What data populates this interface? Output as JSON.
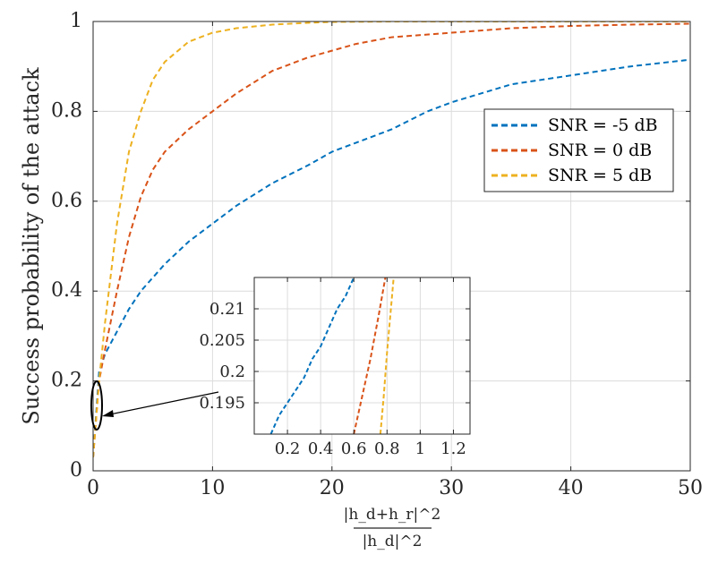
{
  "chart_data": [
    {
      "type": "line",
      "title": "",
      "ylabel": "Success probability of the attack",
      "xlabel": {
        "numerator": "|h_d+h_r|^2",
        "denominator": "|h_d|^2"
      },
      "xlim": [
        0,
        50
      ],
      "ylim": [
        0,
        1
      ],
      "xticks": [
        "0",
        "10",
        "20",
        "30",
        "40",
        "50"
      ],
      "yticks": [
        "0",
        "0.2",
        "0.4",
        "0.6",
        "0.8",
        "1"
      ],
      "grid": true,
      "legend_position": "right",
      "series": [
        {
          "name": "SNR = -5 dB",
          "color": "#0072BD",
          "x": [
            0,
            0.5,
            1,
            2,
            3,
            4,
            5,
            6,
            8,
            10,
            12,
            15,
            18,
            20,
            22,
            25,
            28,
            30,
            35,
            40,
            45,
            50
          ],
          "y": [
            0.03,
            0.22,
            0.26,
            0.31,
            0.36,
            0.4,
            0.43,
            0.46,
            0.51,
            0.55,
            0.59,
            0.64,
            0.68,
            0.71,
            0.73,
            0.76,
            0.8,
            0.82,
            0.86,
            0.88,
            0.9,
            0.915
          ]
        },
        {
          "name": "SNR = 0 dB",
          "color": "#D95319",
          "x": [
            0,
            0.5,
            1,
            2,
            3,
            4,
            5,
            6,
            8,
            10,
            12,
            15,
            18,
            20,
            22,
            25,
            30,
            35,
            40,
            45,
            50
          ],
          "y": [
            0.03,
            0.2,
            0.27,
            0.4,
            0.52,
            0.61,
            0.67,
            0.71,
            0.76,
            0.8,
            0.84,
            0.89,
            0.92,
            0.935,
            0.95,
            0.965,
            0.975,
            0.985,
            0.99,
            0.993,
            0.995
          ]
        },
        {
          "name": "SNR = 5 dB",
          "color": "#EDB120",
          "x": [
            0,
            0.5,
            1,
            2,
            3,
            4,
            5,
            6,
            8,
            10,
            12,
            15,
            18,
            20,
            25,
            30,
            40,
            50
          ],
          "y": [
            0.03,
            0.2,
            0.33,
            0.55,
            0.71,
            0.8,
            0.87,
            0.91,
            0.955,
            0.975,
            0.985,
            0.993,
            0.997,
            0.999,
            1.0,
            1.0,
            1.0,
            1.0
          ]
        }
      ]
    },
    {
      "type": "line",
      "title": "",
      "xlim": [
        0,
        1.3
      ],
      "ylim": [
        0.19,
        0.215
      ],
      "xticks": [
        "0.2",
        "0.4",
        "0.6",
        "0.8",
        "1",
        "1.2"
      ],
      "yticks": [
        "0.195",
        "0.2",
        "0.205",
        "0.21"
      ],
      "grid": true,
      "series": [
        {
          "name": "SNR = -5 dB",
          "color": "#0072BD",
          "x": [
            0.1,
            0.15,
            0.2,
            0.25,
            0.3,
            0.35,
            0.4,
            0.45,
            0.5,
            0.55,
            0.6
          ],
          "y": [
            0.19,
            0.193,
            0.195,
            0.197,
            0.199,
            0.202,
            0.204,
            0.207,
            0.21,
            0.212,
            0.215
          ]
        },
        {
          "name": "SNR = 0 dB",
          "color": "#D95319",
          "x": [
            0.6,
            0.65,
            0.7,
            0.75,
            0.79
          ],
          "y": [
            0.19,
            0.196,
            0.202,
            0.209,
            0.215
          ]
        },
        {
          "name": "SNR = 5 dB",
          "color": "#EDB120",
          "x": [
            0.76,
            0.78,
            0.8,
            0.82,
            0.84
          ],
          "y": [
            0.19,
            0.196,
            0.203,
            0.209,
            0.215
          ]
        }
      ]
    }
  ]
}
